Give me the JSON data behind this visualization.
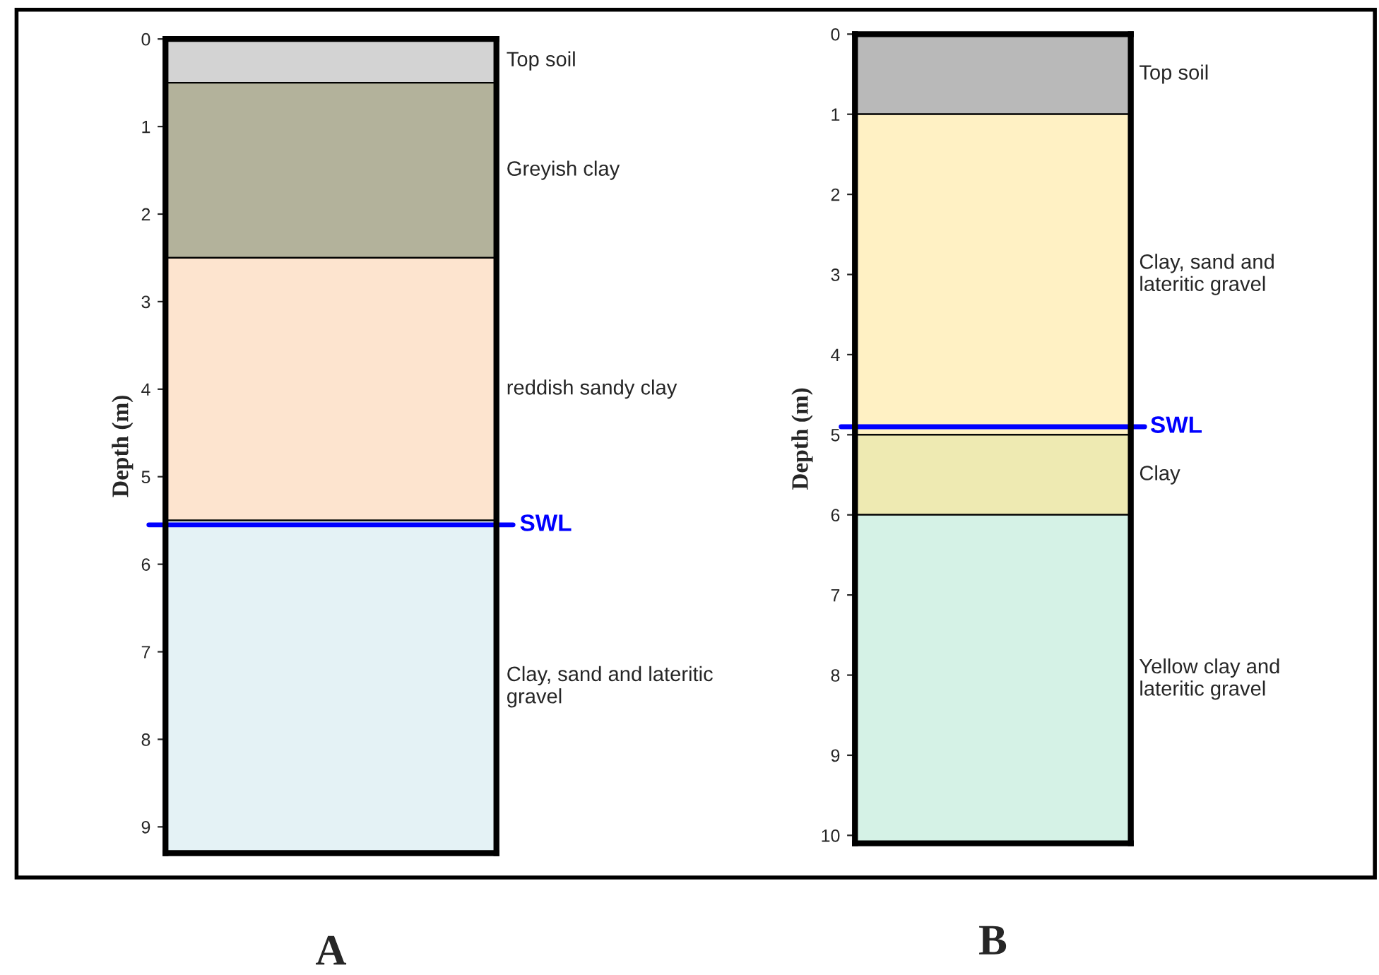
{
  "chart_data": [
    {
      "type": "bar",
      "stacked": true,
      "categories": [
        null
      ],
      "ylabel": "Depth (m)",
      "ylim": [
        9.3,
        0
      ],
      "yticks": [
        0,
        1,
        2,
        3,
        4,
        5,
        6,
        7,
        8,
        9
      ],
      "tick_labels": "y",
      "series": [
        {
          "name": "Top soil",
          "color": "#d3d3d3",
          "values": [
            0.5
          ]
        },
        {
          "name": "Greyish clay",
          "color": "#b3b29b",
          "values": [
            2.0
          ]
        },
        {
          "name": "reddish sandy clay",
          "color": "#fde4cf",
          "values": [
            3.0
          ]
        },
        {
          "name": "Clay, sand and lateritic\ngravel",
          "color": "#e4f2f5",
          "values": [
            3.8
          ]
        }
      ],
      "ref_lines": [
        {
          "axis": "y",
          "value": 5.55,
          "label": "SWL",
          "color": "#0000ff"
        }
      ],
      "annotations": [
        "A"
      ]
    },
    {
      "type": "bar",
      "stacked": true,
      "categories": [
        null
      ],
      "ylabel": "Depth (m)",
      "ylim": [
        10.1,
        0
      ],
      "yticks": [
        0,
        1,
        2,
        3,
        4,
        5,
        6,
        7,
        8,
        9,
        10
      ],
      "tick_labels": "y",
      "series": [
        {
          "name": "Top soil",
          "color": "#b9b9b9",
          "values": [
            1
          ]
        },
        {
          "name": "Clay, sand and\nlateritic gravel",
          "color": "#fff1c4",
          "values": [
            4
          ]
        },
        {
          "name": "Clay",
          "color": "#eeeab2",
          "values": [
            1
          ]
        },
        {
          "name": "Yellow clay and\nlateritic gravel",
          "color": "#d5f2e6",
          "values": [
            4.1
          ]
        }
      ],
      "ref_lines": [
        {
          "axis": "y",
          "value": 4.9,
          "label": "SWL",
          "color": "#0000ff"
        }
      ],
      "annotations": [
        "B"
      ]
    }
  ]
}
